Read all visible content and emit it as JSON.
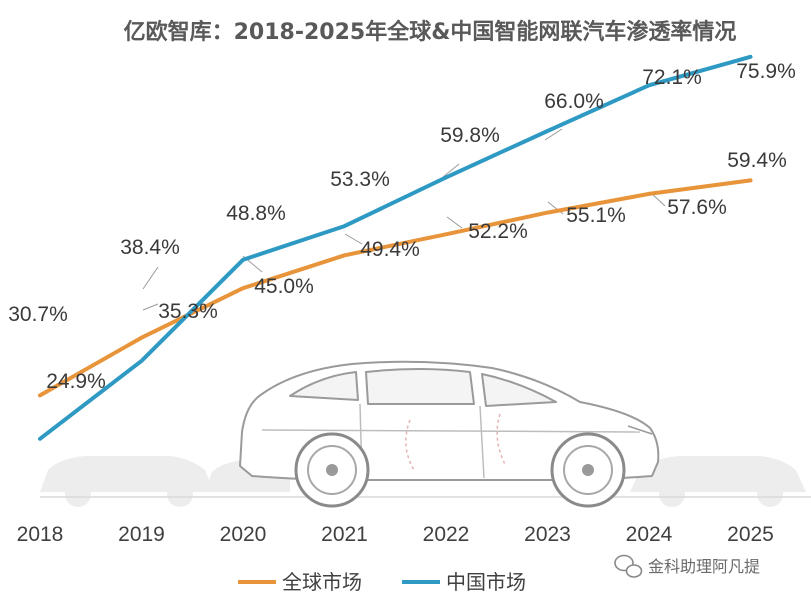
{
  "chart_data": {
    "type": "line",
    "title": "亿欧智库：2018-2025年全球&中国智能网联汽车渗透率情况",
    "xlabel": "",
    "ylabel": "",
    "categories": [
      "2018",
      "2019",
      "2020",
      "2021",
      "2022",
      "2023",
      "2024",
      "2025"
    ],
    "ylim": [
      20,
      80
    ],
    "grid": false,
    "legend_position": "bottom-center",
    "series": [
      {
        "name": "全球市场",
        "color": "#E8943A",
        "values": [
          30.7,
          38.4,
          45.0,
          49.4,
          52.2,
          55.1,
          57.6,
          59.4
        ],
        "labels": [
          "30.7%",
          "38.4%",
          "45.0%",
          "49.4%",
          "52.2%",
          "55.1%",
          "57.6%",
          "59.4%"
        ]
      },
      {
        "name": "中国市场",
        "color": "#2E9AC4",
        "values": [
          24.9,
          35.3,
          48.8,
          53.3,
          59.8,
          66.0,
          72.1,
          75.9
        ],
        "labels": [
          "24.9%",
          "35.3%",
          "48.8%",
          "53.3%",
          "59.8%",
          "66.0%",
          "72.1%",
          "75.9%"
        ]
      }
    ]
  },
  "watermark": {
    "text": "金科助理阿凡提",
    "icon": "wechat-icon"
  }
}
